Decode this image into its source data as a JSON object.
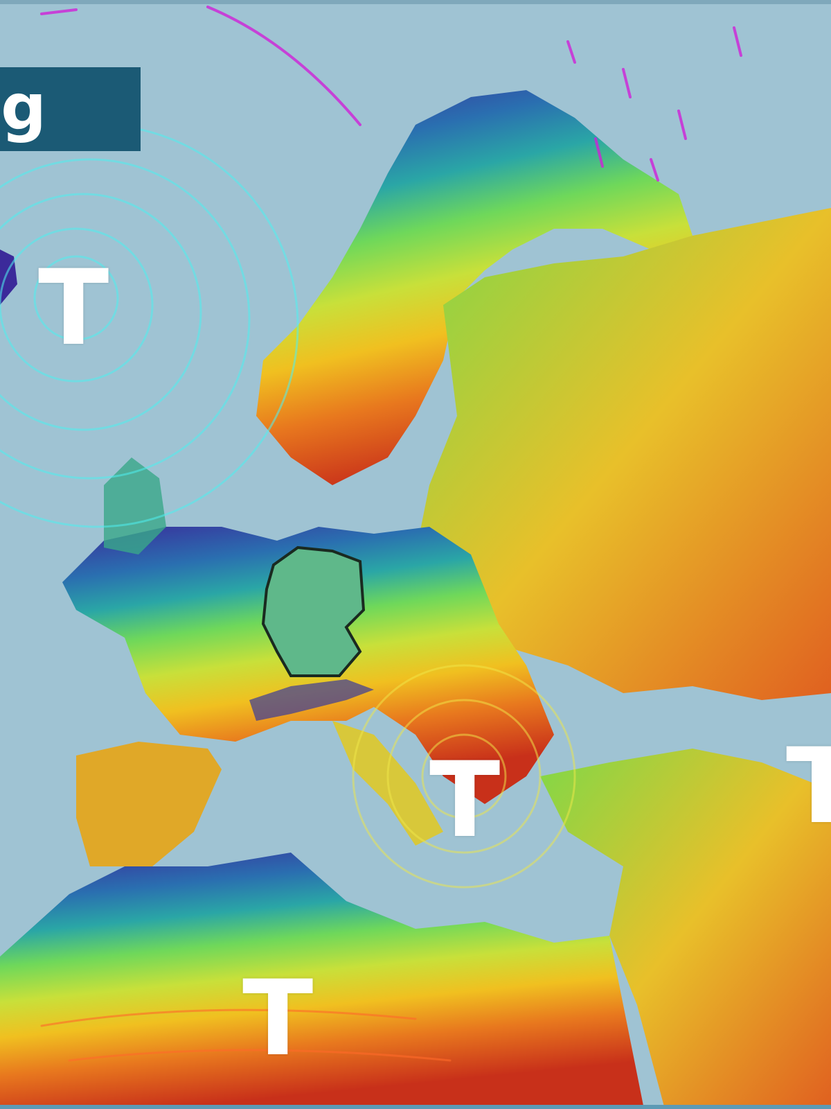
{
  "title": {
    "text": "ng"
  },
  "pressure_systems": [
    {
      "label": "T",
      "kind": "low"
    },
    {
      "label": "T",
      "kind": "low"
    },
    {
      "label": "T",
      "kind": "low"
    },
    {
      "label": "T",
      "kind": "low"
    }
  ],
  "colors": {
    "sea": "#9fc3d3",
    "title_background": "#1b5a75",
    "cold": "#3b2a9a",
    "cool": "#2aa6a6",
    "mild": "#9be03a",
    "warm": "#f0c020",
    "hot": "#d8401a",
    "wind_cold": "#4ff0f0",
    "wind_polar": "#d020d8"
  }
}
